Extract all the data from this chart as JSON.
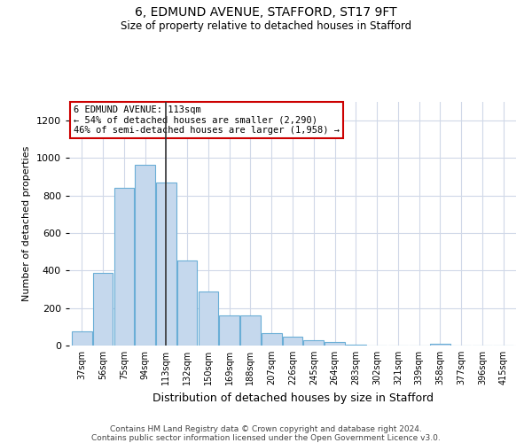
{
  "title": "6, EDMUND AVENUE, STAFFORD, ST17 9FT",
  "subtitle": "Size of property relative to detached houses in Stafford",
  "xlabel": "Distribution of detached houses by size in Stafford",
  "ylabel": "Number of detached properties",
  "categories": [
    "37sqm",
    "56sqm",
    "75sqm",
    "94sqm",
    "113sqm",
    "132sqm",
    "150sqm",
    "169sqm",
    "188sqm",
    "207sqm",
    "226sqm",
    "245sqm",
    "264sqm",
    "283sqm",
    "302sqm",
    "321sqm",
    "339sqm",
    "358sqm",
    "377sqm",
    "396sqm",
    "415sqm"
  ],
  "values": [
    75,
    390,
    840,
    965,
    870,
    455,
    290,
    160,
    160,
    65,
    48,
    30,
    20,
    5,
    2,
    2,
    0,
    8,
    2,
    0,
    0
  ],
  "bar_color": "#c5d8ed",
  "bar_edge_color": "#6aaed6",
  "highlight_index": 4,
  "highlight_line_color": "#333333",
  "ylim": [
    0,
    1300
  ],
  "yticks": [
    0,
    200,
    400,
    600,
    800,
    1000,
    1200
  ],
  "annotation_title": "6 EDMUND AVENUE: 113sqm",
  "annotation_line1": "← 54% of detached houses are smaller (2,290)",
  "annotation_line2": "46% of semi-detached houses are larger (1,958) →",
  "annotation_box_color": "#ffffff",
  "annotation_box_edge": "#cc0000",
  "footer1": "Contains HM Land Registry data © Crown copyright and database right 2024.",
  "footer2": "Contains public sector information licensed under the Open Government Licence v3.0.",
  "background_color": "#ffffff",
  "grid_color": "#d0d8e8"
}
